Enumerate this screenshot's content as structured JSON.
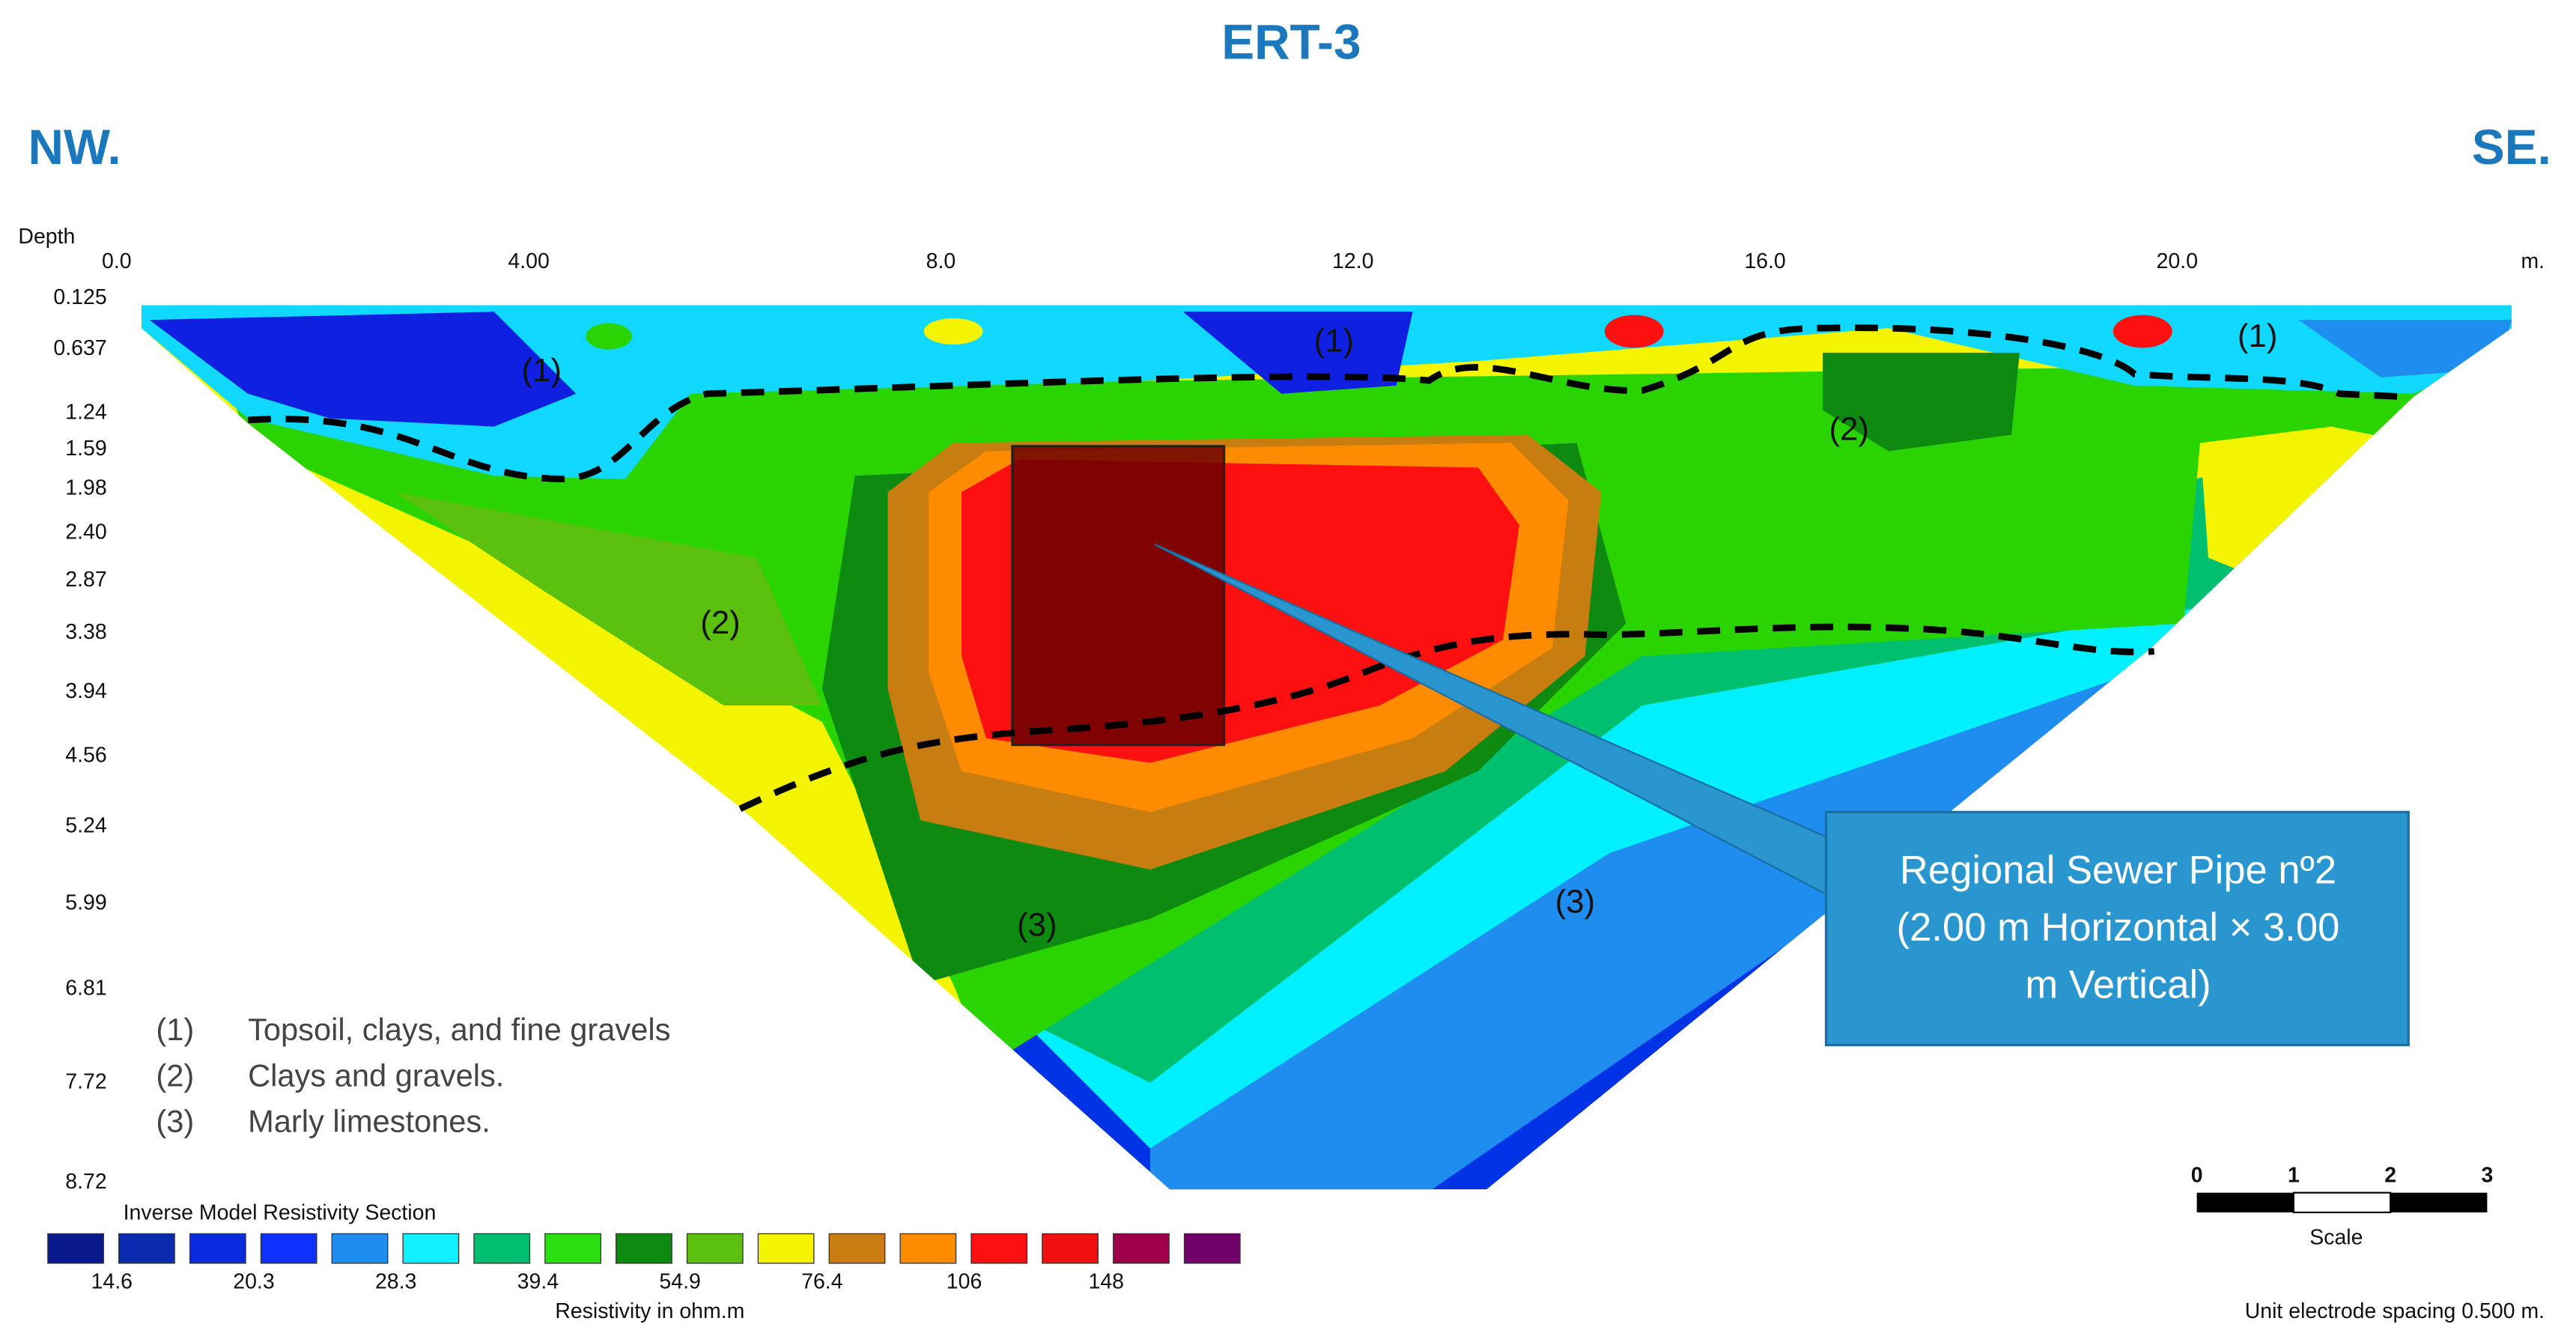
{
  "title": "ERT-3",
  "left_label": "NW.",
  "right_label": "SE.",
  "depth_axis": {
    "title": "Depth",
    "labels": [
      "0.125",
      "0.637",
      "1.24",
      "1.59",
      "1.98",
      "2.40",
      "2.87",
      "3.38",
      "3.94",
      "4.56",
      "5.24",
      "5.99",
      "6.81",
      "7.72",
      "8.72"
    ]
  },
  "distance_axis": {
    "labels": [
      "0.0",
      "4.00",
      "8.0",
      "12.0",
      "16.0",
      "20.0"
    ],
    "unit": "m."
  },
  "annotations": [
    "(1)",
    "(1)",
    "(1)",
    "(2)",
    "(2)",
    "(3)",
    "(3)"
  ],
  "legend_items": [
    {
      "number": "(1)",
      "text": "Topsoil, clays, and fine gravels"
    },
    {
      "number": "(2)",
      "text": "Clays and gravels."
    },
    {
      "number": "(3)",
      "text": "Marly limestones."
    }
  ],
  "callout": [
    "Regional Sewer Pipe nº2",
    "(2.00 m Horizontal × 3.00",
    "m Vertical)"
  ],
  "scale": {
    "ticks": [
      "0",
      "1",
      "2",
      "3"
    ],
    "label": "Scale"
  },
  "color_scale": {
    "title": "Inverse Model Resistivity Section",
    "labels": [
      "14.6",
      "20.3",
      "28.3",
      "39.4",
      "54.9",
      "76.4",
      "106",
      "148"
    ],
    "unit_label": "Resistivity in ohm.m"
  },
  "footer": "Unit electrode spacing 0.500 m."
}
